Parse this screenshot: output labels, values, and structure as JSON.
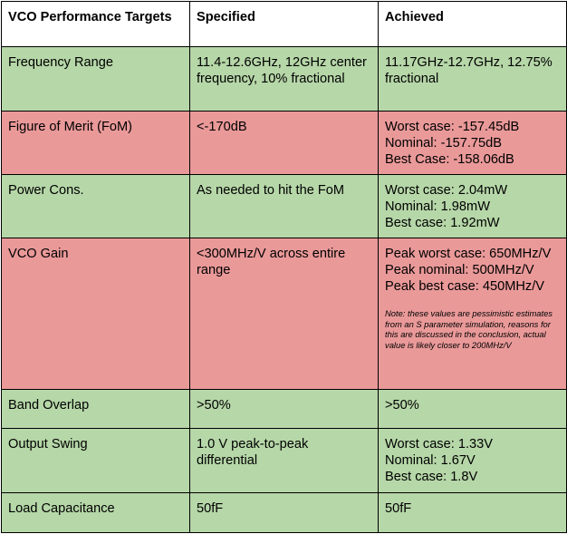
{
  "colors": {
    "pass": "#b6d7a8",
    "fail": "#ea9999",
    "header": "#ffffff",
    "border": "#000000"
  },
  "headers": {
    "target": "VCO Performance Targets",
    "specified": "Specified",
    "achieved": "Achieved"
  },
  "rows": [
    {
      "status": "pass",
      "label": "Frequency Range",
      "specified": "11.4-12.6GHz, 12GHz center frequency, 10% fractional",
      "achieved": [
        "11.17GHz-12.7GHz, 12.75% fractional"
      ]
    },
    {
      "status": "fail",
      "label": "Figure of Merit (FoM)",
      "specified": "<-170dB",
      "achieved": [
        "Worst case: -157.45dB",
        "Nominal: -157.75dB",
        "Best Case: -158.06dB"
      ]
    },
    {
      "status": "pass",
      "label": "Power Cons.",
      "specified": "As needed to hit the FoM",
      "achieved": [
        "Worst case: 2.04mW",
        "Nominal: 1.98mW",
        "Best case: 1.92mW"
      ]
    },
    {
      "status": "fail",
      "label": "VCO Gain",
      "specified": "<300MHz/V across entire range",
      "achieved": [
        "Peak worst case: 650MHz/V",
        "Peak nominal: 500MHz/V",
        "Peak best case: 450MHz/V"
      ],
      "note": "Note: these values are pessimistic estimates from an S parameter simulation, reasons for this are discussed in the conclusion, actual value is likely closer to 200MHz/V"
    },
    {
      "status": "pass",
      "label": "Band Overlap",
      "specified": ">50%",
      "achieved": [
        ">50%"
      ]
    },
    {
      "status": "pass",
      "label": "Output Swing",
      "specified": "1.0 V peak-to-peak differential",
      "achieved": [
        "Worst case: 1.33V",
        "Nominal: 1.67V",
        "Best case: 1.8V"
      ]
    },
    {
      "status": "pass",
      "label": "Load Capacitance",
      "specified": "50fF",
      "achieved": [
        "50fF"
      ]
    }
  ]
}
